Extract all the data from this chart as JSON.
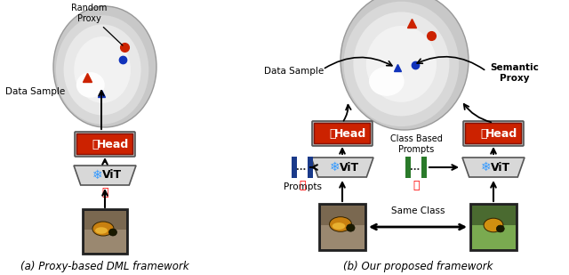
{
  "title_a": "(a) Proxy-based DML framework",
  "title_b": "(b) Our proposed framework",
  "bg_color": "#ffffff",
  "red_marker": "#cc2200",
  "blue_marker": "#1133bb",
  "blue_prompt": "#1a3a8a",
  "green_prompt": "#2a7a2a",
  "random_proxy_label": "Random\nProxy",
  "data_sample_label_a": "Data Sample",
  "data_sample_label_b": "Data Sample",
  "semantic_proxy_label": "Semantic\nProxy",
  "prompts_label": "Prompts",
  "class_based_label": "Class Based\nPrompts",
  "same_class_label": "Same Class",
  "head_text": "Head",
  "vit_text": "ViT",
  "head_fill": "#e8e8e8",
  "vit_fill": "#d8d8d8",
  "head_red_fill": "#cc2200",
  "snowflake_color": "#3399ff"
}
